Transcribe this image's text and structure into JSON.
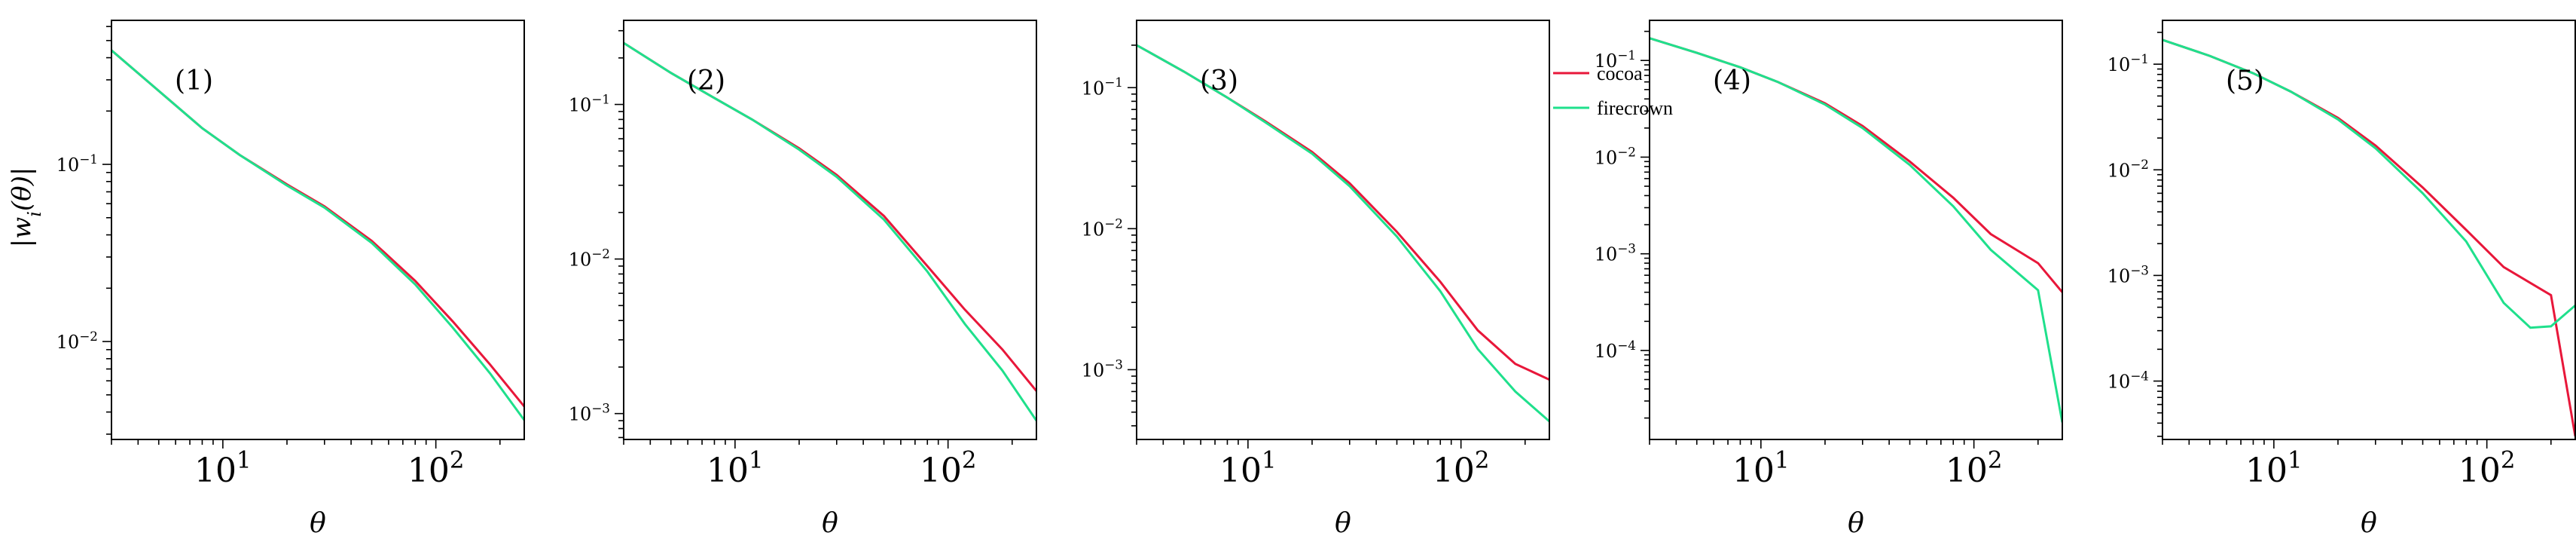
{
  "chart_data": {
    "type": "line",
    "xscale": "log",
    "yscale": "log",
    "xlim": [
      3,
      260
    ],
    "xlabel": "θ",
    "ylabel": "|w_i(θ)|",
    "legend": {
      "placement": "top-right of panel 3",
      "entries": [
        "cocoa",
        "firecrown"
      ]
    },
    "colors": {
      "cocoa": "#e8173a",
      "firecrown": "#1fe08c"
    },
    "grid": false,
    "panels": [
      {
        "label": "(1)",
        "ylim": [
          0.0028,
          0.65
        ],
        "yticks": [
          "10^{-1}",
          "10^{-2}"
        ],
        "series": [
          {
            "name": "cocoa",
            "x": [
              3,
              5,
              8,
              12,
              20,
              30,
              50,
              80,
              120,
              180,
              260
            ],
            "y": [
              0.44,
              0.26,
              0.16,
              0.113,
              0.077,
              0.058,
              0.037,
              0.022,
              0.013,
              0.0074,
              0.0043
            ]
          },
          {
            "name": "firecrown",
            "x": [
              3,
              5,
              8,
              12,
              20,
              30,
              50,
              80,
              120,
              180,
              260
            ],
            "y": [
              0.44,
              0.26,
              0.16,
              0.113,
              0.076,
              0.057,
              0.036,
              0.021,
              0.012,
              0.0066,
              0.0036
            ]
          }
        ]
      },
      {
        "label": "(2)",
        "ylim": [
          0.00068,
          0.35
        ],
        "yticks": [
          "10^{-1}",
          "10^{-2}",
          "10^{-3}"
        ],
        "series": [
          {
            "name": "cocoa",
            "x": [
              3,
              5,
              8,
              12,
              20,
              30,
              50,
              80,
              120,
              180,
              260
            ],
            "y": [
              0.25,
              0.16,
              0.11,
              0.08,
              0.052,
              0.035,
              0.019,
              0.009,
              0.0047,
              0.0026,
              0.0014
            ]
          },
          {
            "name": "firecrown",
            "x": [
              3,
              5,
              8,
              12,
              20,
              30,
              50,
              80,
              120,
              180,
              260
            ],
            "y": [
              0.25,
              0.16,
              0.11,
              0.08,
              0.051,
              0.034,
              0.018,
              0.0083,
              0.0038,
              0.0019,
              0.0009
            ]
          }
        ]
      },
      {
        "label": "(3)",
        "ylim": [
          0.00032,
          0.3
        ],
        "yticks": [
          "10^{-1}",
          "10^{-2}",
          "10^{-3}"
        ],
        "series": [
          {
            "name": "cocoa",
            "x": [
              3,
              5,
              8,
              12,
              20,
              30,
              50,
              80,
              120,
              180,
              260
            ],
            "y": [
              0.2,
              0.13,
              0.085,
              0.058,
              0.035,
              0.021,
              0.0095,
              0.0042,
              0.0019,
              0.0011,
              0.00085
            ]
          },
          {
            "name": "firecrown",
            "x": [
              3,
              5,
              8,
              12,
              20,
              30,
              50,
              80,
              120,
              180,
              260
            ],
            "y": [
              0.2,
              0.13,
              0.085,
              0.057,
              0.034,
              0.02,
              0.0088,
              0.0036,
              0.0014,
              0.0007,
              0.00043
            ]
          }
        ]
      },
      {
        "label": "(4)",
        "ylim": [
          1.2e-05,
          0.26
        ],
        "yticks": [
          "10^{-1}",
          "10^{-2}",
          "10^{-3}",
          "10^{-4}"
        ],
        "series": [
          {
            "name": "cocoa",
            "x": [
              3,
              5,
              8,
              12,
              20,
              30,
              50,
              80,
              120,
              200,
              260
            ],
            "y": [
              0.17,
              0.12,
              0.085,
              0.06,
              0.036,
              0.021,
              0.009,
              0.0038,
              0.0016,
              0.0008,
              0.0004
            ]
          },
          {
            "name": "firecrown",
            "x": [
              3,
              5,
              8,
              12,
              20,
              30,
              50,
              80,
              120,
              200,
              260
            ],
            "y": [
              0.17,
              0.12,
              0.085,
              0.06,
              0.035,
              0.02,
              0.0083,
              0.0031,
              0.0011,
              0.00042,
              1.8e-05
            ]
          }
        ]
      },
      {
        "label": "(5)",
        "ylim": [
          2.8e-05,
          0.26
        ],
        "yticks": [
          "10^{-1}",
          "10^{-2}",
          "10^{-3}",
          "10^{-4}"
        ],
        "series": [
          {
            "name": "cocoa",
            "x": [
              3,
              5,
              8,
              12,
              20,
              30,
              50,
              80,
              120,
              200,
              260
            ],
            "y": [
              0.17,
              0.12,
              0.082,
              0.055,
              0.031,
              0.017,
              0.0068,
              0.0027,
              0.0012,
              0.00065,
              3e-05
            ]
          },
          {
            "name": "firecrown",
            "x": [
              3,
              5,
              8,
              12,
              20,
              30,
              50,
              80,
              120,
              160,
              200,
              260
            ],
            "y": [
              0.17,
              0.12,
              0.082,
              0.055,
              0.03,
              0.016,
              0.006,
              0.0021,
              0.00055,
              0.00032,
              0.00033,
              0.00052
            ]
          }
        ]
      }
    ],
    "xticks": [
      "10^{1}",
      "10^{2}"
    ]
  }
}
